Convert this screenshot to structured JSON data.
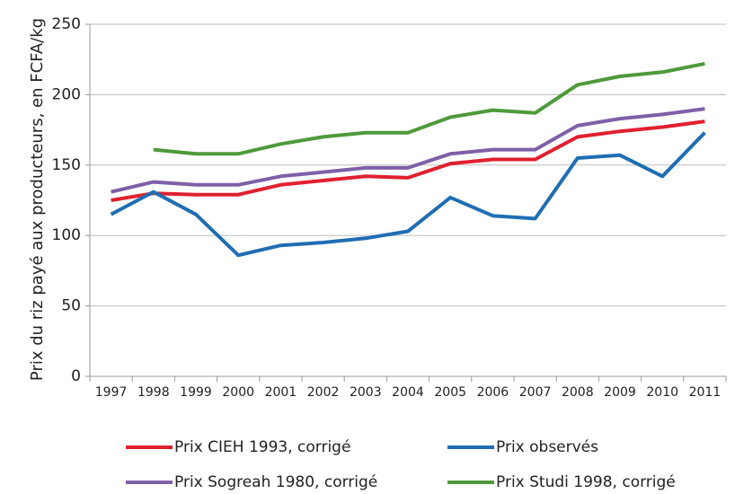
{
  "chart_data": {
    "type": "line",
    "y_label": "Prix du riz payé aux producteurs, en FCFA/kg",
    "categories": [
      "1997",
      "1998",
      "1999",
      "2000",
      "2001",
      "2002",
      "2003",
      "2004",
      "2005",
      "2006",
      "2007",
      "2008",
      "2009",
      "2010",
      "2011"
    ],
    "ylim": [
      0,
      250
    ],
    "yticks": [
      0,
      50,
      100,
      150,
      200,
      250
    ],
    "grid": true,
    "legend": "bottom",
    "series": [
      {
        "name": "Prix CIEH 1993, corrigé",
        "color": "#e0202e",
        "values": [
          125,
          130,
          129,
          129,
          136,
          139,
          142,
          141,
          151,
          154,
          154,
          170,
          174,
          177,
          181
        ]
      },
      {
        "name": "Prix observés",
        "color": "#1f6eb3",
        "values": [
          115,
          131,
          115,
          86,
          93,
          95,
          98,
          103,
          127,
          114,
          112,
          155,
          157,
          142,
          173
        ]
      },
      {
        "name": "Prix Sogreah 1980, corrigé",
        "color": "#7e60a8",
        "values": [
          131,
          138,
          136,
          136,
          142,
          145,
          148,
          148,
          158,
          161,
          161,
          178,
          183,
          186,
          190
        ]
      },
      {
        "name": "Prix Studi 1998, corrigé",
        "color": "#4e9a3a",
        "values": [
          null,
          161,
          158,
          158,
          165,
          170,
          173,
          173,
          184,
          189,
          187,
          207,
          213,
          216,
          222
        ]
      }
    ]
  }
}
